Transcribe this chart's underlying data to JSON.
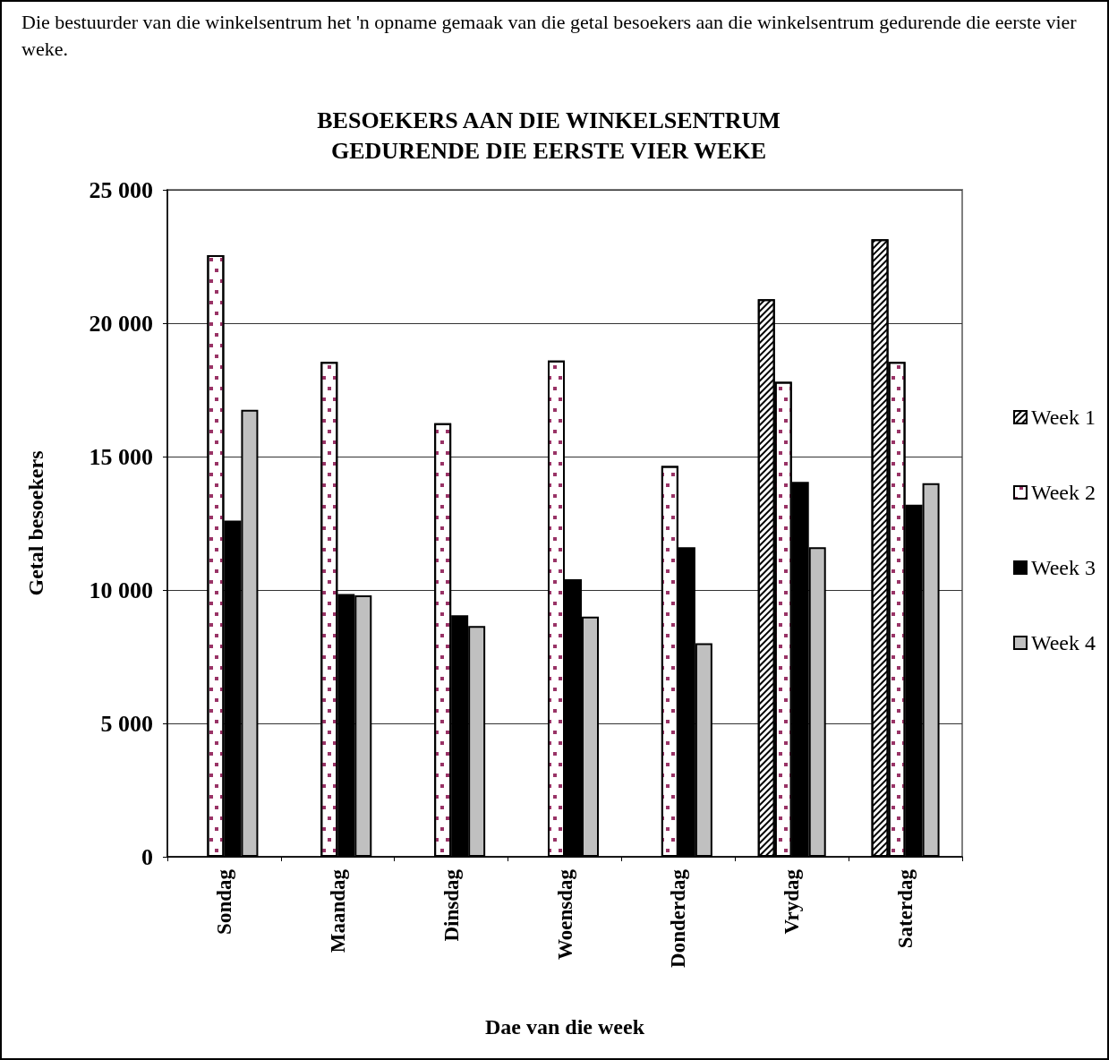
{
  "chart_data": {
    "type": "bar",
    "title": "BESOEKERS AAN DIE WINKELSENTRUM\nGEDURENDE DIE EERSTE VIER WEKE",
    "annotations": [
      "Die bestuurder van die winkelsentrum het 'n opname gemaak van die getal besoekers aan die winkelsentrum gedurende die eerste vier weke."
    ],
    "xlabel": "Dae van die week",
    "ylabel": "Getal besoekers",
    "categories": [
      "Sondag",
      "Maandag",
      "Dinsdag",
      "Woensdag",
      "Donderdag",
      "Vrydag",
      "Saterdag"
    ],
    "series": [
      {
        "name": "Week 1",
        "color": "#ffffff",
        "values": [
          null,
          null,
          null,
          null,
          null,
          20900,
          23150
        ]
      },
      {
        "name": "Week 2",
        "color": "#ffffff",
        "values": [
          22550,
          18550,
          16250,
          18600,
          14650,
          17800,
          18550
        ]
      },
      {
        "name": "Week 3",
        "color": "#000000",
        "values": [
          12600,
          9850,
          9050,
          10400,
          11600,
          14050,
          13200
        ]
      },
      {
        "name": "Week 4",
        "color": "#c0c0c0",
        "values": [
          16750,
          9800,
          8650,
          9000,
          8000,
          11600,
          14000
        ]
      }
    ],
    "ylim": [
      0,
      25000
    ],
    "yticks": [
      0,
      {
        "value": 5000,
        "label": "5 000"
      },
      {
        "value": 10000,
        "label": "10 000"
      },
      {
        "value": 15000,
        "label": "15 000"
      },
      {
        "value": 20000,
        "label": "20 000"
      },
      {
        "value": 25000,
        "label": "25 000"
      }
    ],
    "grid": "y",
    "legend": "right"
  }
}
